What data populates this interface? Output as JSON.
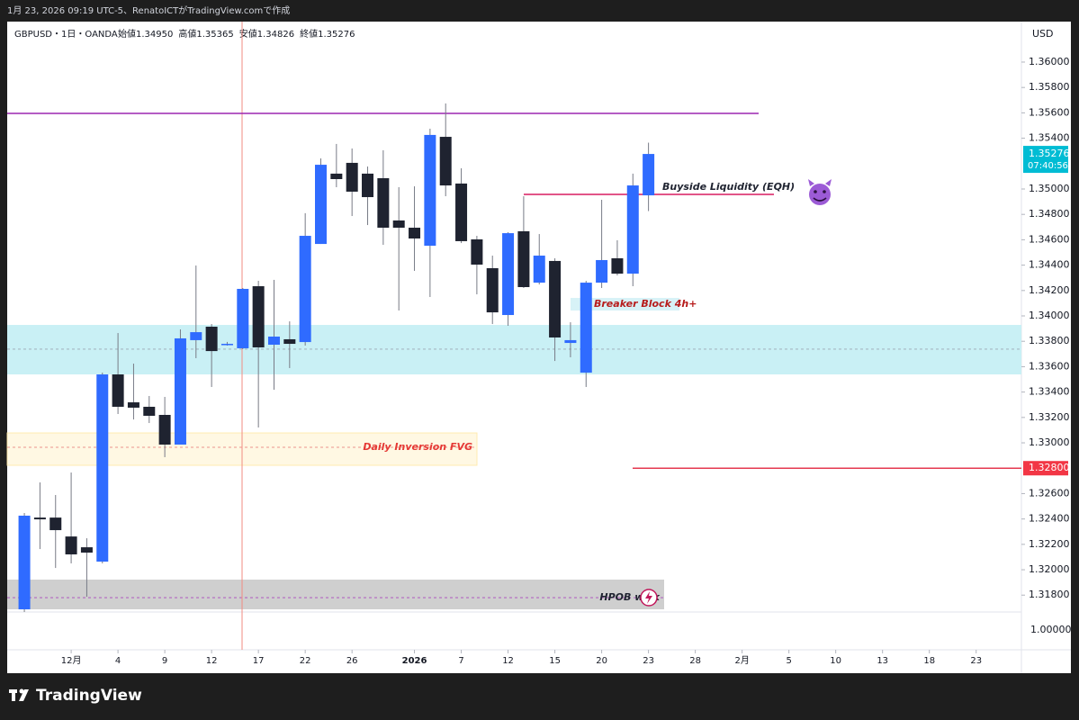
{
  "chart_data": {
    "type": "candlestick",
    "byline": "1月 23, 2026 09:19 UTC-5、RenatoICTがTradingView.comで作成",
    "symbol": "GBPUSD・1日・OANDA",
    "legend_names": [
      "始値",
      "高値",
      "安値",
      "終値"
    ],
    "legend_values": [
      "1.34950",
      "1.35365",
      "1.34826",
      "1.35276"
    ],
    "currency": "USD",
    "brand": "TradingView",
    "countdown": "07:40:56",
    "extra_scale_label": "1.00000",
    "up_color": "#2f6bff",
    "down_color": "#1f2330",
    "open": [
      1.31688,
      1.32411,
      1.32411,
      1.32262,
      1.32177,
      1.32064,
      1.33539,
      1.33319,
      1.33284,
      1.3322,
      1.32986,
      1.33809,
      1.33915,
      1.3378,
      1.33745,
      1.34234,
      1.33773,
      1.33816,
      1.33794,
      1.34567,
      1.35121,
      1.35206,
      1.35121,
      1.35085,
      1.34752,
      1.34695,
      1.34553,
      1.35411,
      1.35043,
      1.34603,
      1.34376,
      1.34007,
      1.34667,
      1.34262,
      1.34433,
      1.33787,
      1.33553,
      1.34262,
      1.34454,
      1.34333,
      1.3495
    ],
    "high": [
      1.32447,
      1.32688,
      1.32589,
      1.32766,
      1.32248,
      1.33553,
      1.33865,
      1.33624,
      1.33369,
      1.33362,
      1.33894,
      1.34397,
      1.33936,
      1.33795,
      1.3422,
      1.34277,
      1.34284,
      1.33957,
      1.34809,
      1.35241,
      1.35355,
      1.35319,
      1.35177,
      1.35305,
      1.35014,
      1.35021,
      1.35475,
      1.35674,
      1.35163,
      1.34631,
      1.34475,
      1.3466,
      1.34943,
      1.34645,
      1.34454,
      1.3395,
      1.34276,
      1.34915,
      1.34596,
      1.35121,
      1.35365
    ],
    "low": [
      1.31667,
      1.32163,
      1.32014,
      1.3205,
      1.31787,
      1.3205,
      1.33227,
      1.33184,
      1.33156,
      1.32887,
      1.32986,
      1.33667,
      1.3344,
      1.33766,
      1.33738,
      1.33121,
      1.33418,
      1.33589,
      1.33766,
      1.34567,
      1.35014,
      1.34787,
      1.34716,
      1.3456,
      1.34043,
      1.34355,
      1.34149,
      1.34943,
      1.34574,
      1.3417,
      1.33936,
      1.33922,
      1.3422,
      1.34248,
      1.33645,
      1.33674,
      1.3344,
      1.3422,
      1.34319,
      1.34234,
      1.34826
    ],
    "close": [
      1.32426,
      1.32397,
      1.32312,
      1.32121,
      1.32135,
      1.33539,
      1.33284,
      1.33277,
      1.33213,
      1.32986,
      1.33823,
      1.33872,
      1.33723,
      1.3378,
      1.34213,
      1.33752,
      1.33837,
      1.3378,
      1.34631,
      1.35191,
      1.35078,
      1.34979,
      1.34936,
      1.34695,
      1.34695,
      1.3461,
      1.35426,
      1.35028,
      1.34589,
      1.34404,
      1.34028,
      1.34652,
      1.34227,
      1.34475,
      1.3383,
      1.33809,
      1.34262,
      1.3444,
      1.34333,
      1.35028,
      1.35276
    ],
    "xlim": [
      -1.1,
      63.9
    ],
    "xticks": [
      {
        "value": 3,
        "label": "12月"
      },
      {
        "value": 6,
        "label": "4"
      },
      {
        "value": 9,
        "label": "9"
      },
      {
        "value": 12,
        "label": "12"
      },
      {
        "value": 15,
        "label": "17"
      },
      {
        "value": 18,
        "label": "22"
      },
      {
        "value": 21,
        "label": "26"
      },
      {
        "value": 25,
        "label": "2026"
      },
      {
        "value": 28,
        "label": "7"
      },
      {
        "value": 31,
        "label": "12"
      },
      {
        "value": 34,
        "label": "15"
      },
      {
        "value": 37,
        "label": "20"
      },
      {
        "value": 40,
        "label": "23"
      },
      {
        "value": 43,
        "label": "28"
      },
      {
        "value": 46,
        "label": "2月"
      },
      {
        "value": 49,
        "label": "5"
      },
      {
        "value": 52,
        "label": "10"
      },
      {
        "value": 55,
        "label": "13"
      },
      {
        "value": 58,
        "label": "18"
      },
      {
        "value": 61,
        "label": "23"
      }
    ],
    "ylim": [
      1.31667,
      1.36319
    ],
    "yticks": [
      {
        "value": 1.36,
        "label": "1.36000"
      },
      {
        "value": 1.358,
        "label": "1.35800"
      },
      {
        "value": 1.356,
        "label": "1.35600"
      },
      {
        "value": 1.354,
        "label": "1.35400"
      },
      {
        "value": 1.35,
        "label": "1.35000"
      },
      {
        "value": 1.348,
        "label": "1.34800"
      },
      {
        "value": 1.346,
        "label": "1.34600"
      },
      {
        "value": 1.344,
        "label": "1.34400"
      },
      {
        "value": 1.342,
        "label": "1.34200"
      },
      {
        "value": 1.34,
        "label": "1.34000"
      },
      {
        "value": 1.338,
        "label": "1.33800"
      },
      {
        "value": 1.336,
        "label": "1.33600"
      },
      {
        "value": 1.334,
        "label": "1.33400"
      },
      {
        "value": 1.332,
        "label": "1.33200"
      },
      {
        "value": 1.33,
        "label": "1.33000"
      },
      {
        "value": 1.326,
        "label": "1.32600"
      },
      {
        "value": 1.324,
        "label": "1.32400"
      },
      {
        "value": 1.322,
        "label": "1.32200"
      },
      {
        "value": 1.32,
        "label": "1.32000"
      },
      {
        "value": 1.318,
        "label": "1.31800"
      }
    ],
    "purple_level": 1.35596,
    "buyside": {
      "label": "Buyside Liquidity (EQH)",
      "value": 1.34957
    },
    "red_level": {
      "value": 1.328,
      "label": "1.32800"
    },
    "breaker": {
      "label": "Breaker Block 4h+",
      "value": 1.34092
    },
    "zones": [
      {
        "label": null,
        "top": 1.33929,
        "bottom": 1.33539,
        "mid": 1.33738
      },
      {
        "label": "Daily Inversion FVG",
        "top": 1.33078,
        "bottom": 1.32823,
        "mid": 1.32965
      },
      {
        "label": "HPOB wick",
        "top": 1.31922,
        "bottom": 1.31688,
        "mid": 1.3178
      }
    ]
  }
}
